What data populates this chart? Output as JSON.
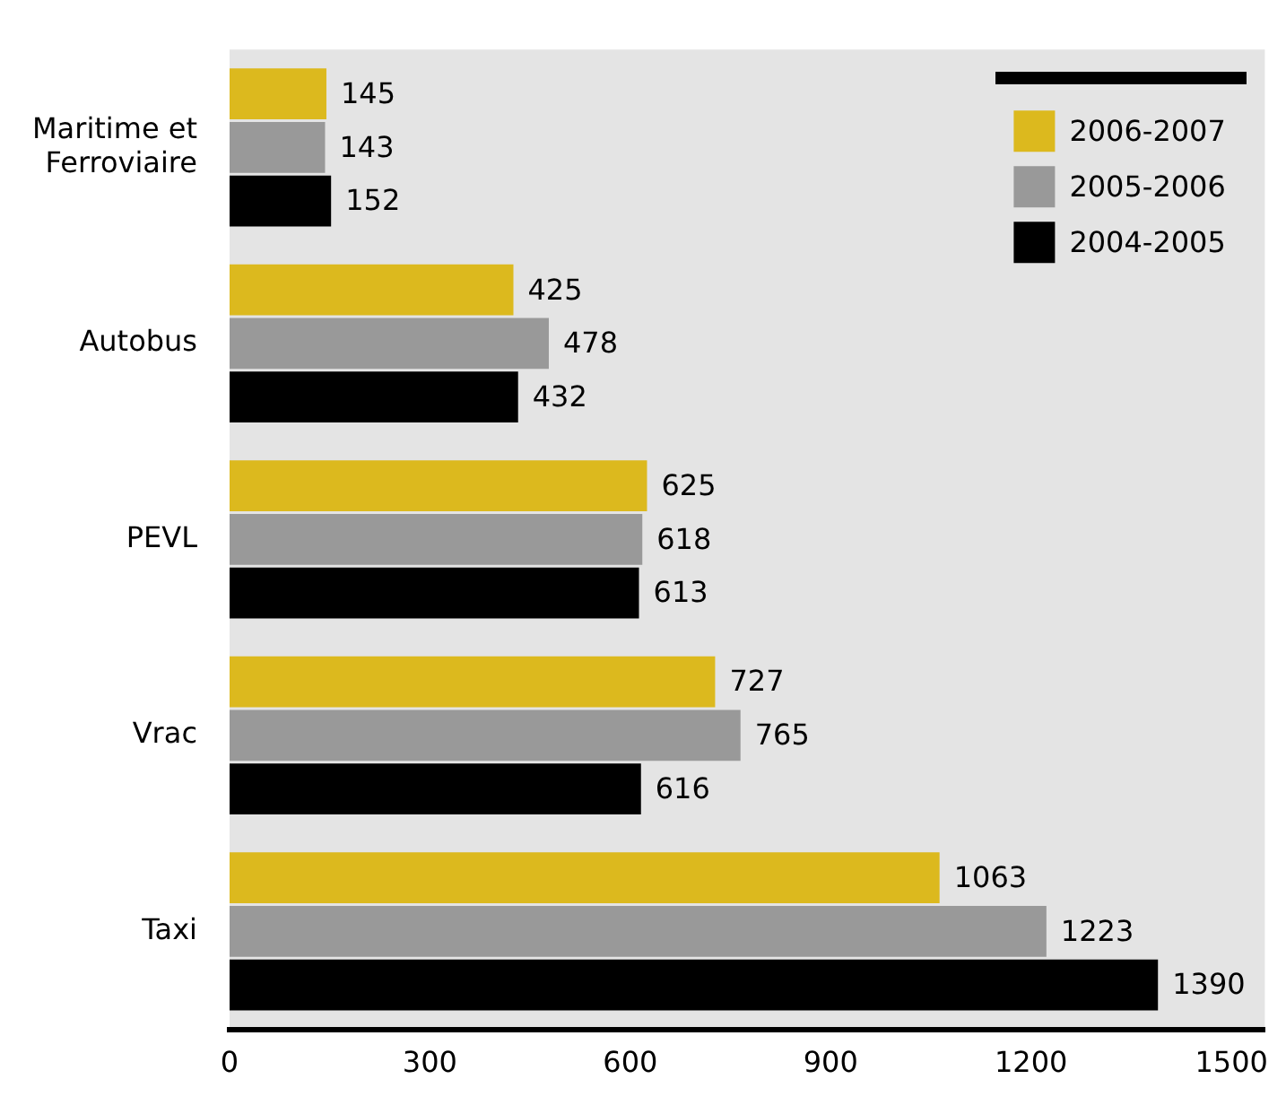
{
  "chart_data": {
    "type": "bar",
    "orientation": "horizontal",
    "categories": [
      "Maritime et Ferroviaire",
      "Autobus",
      "PEVL",
      "Vrac",
      "Taxi"
    ],
    "series": [
      {
        "name": "2006-2007",
        "color": "#dcb91e",
        "values": [
          145,
          425,
          625,
          727,
          1063
        ]
      },
      {
        "name": "2005-2006",
        "color": "#999999",
        "values": [
          143,
          478,
          618,
          765,
          1223
        ]
      },
      {
        "name": "2004-2005",
        "color": "#000000",
        "values": [
          152,
          432,
          613,
          616,
          1390
        ]
      }
    ],
    "xlim": [
      0,
      1550
    ],
    "xticks": [
      0,
      300,
      600,
      900,
      1200,
      1500
    ],
    "grid": false,
    "legend": "top right",
    "data_labels": true
  }
}
